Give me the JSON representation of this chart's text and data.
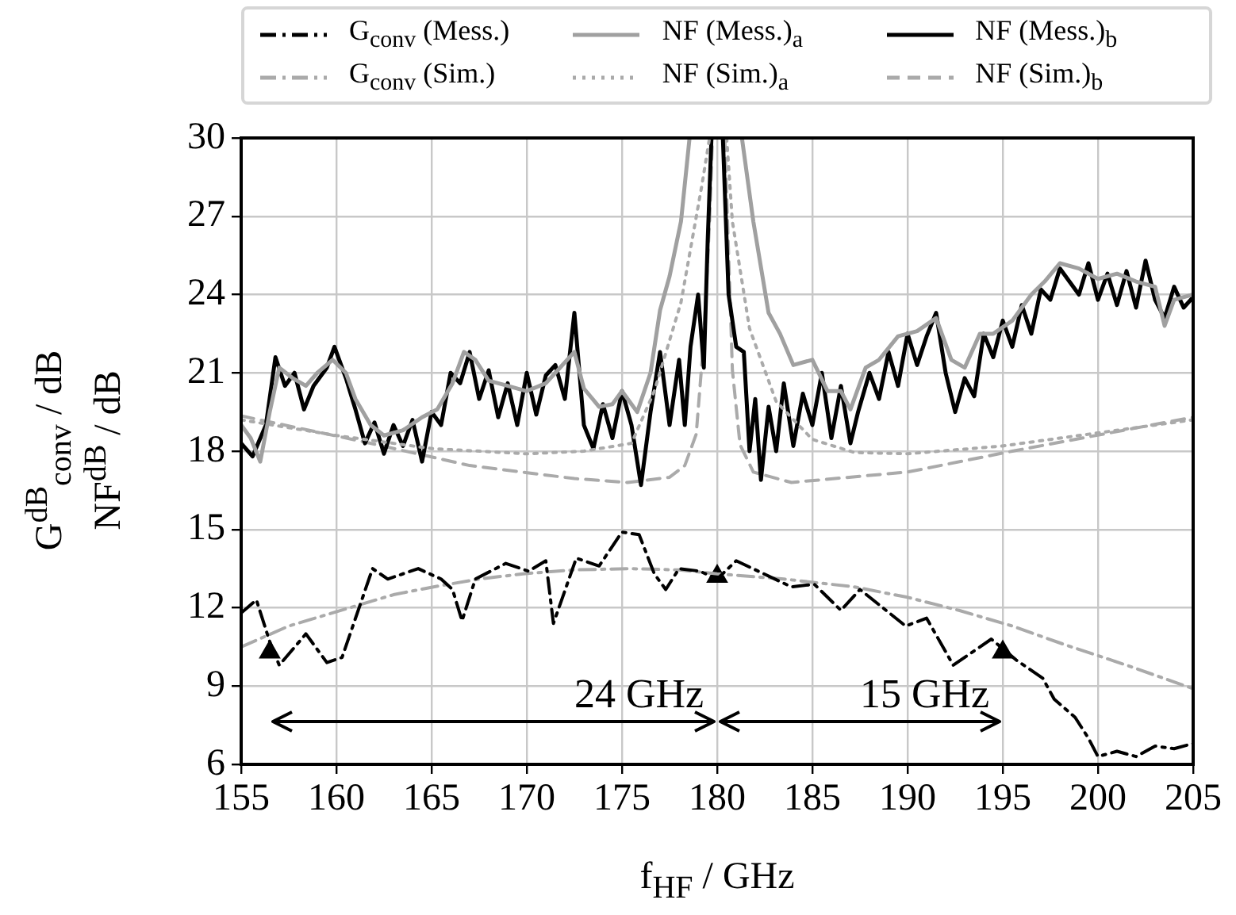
{
  "chart_data": {
    "type": "line",
    "xlabel": "f$_{HF}$ / GHz",
    "ylabel": "G$^{dB}$$_{conv}$ / dB\nNF$^{dB}$ / dB",
    "xlim": [
      155,
      205
    ],
    "xticks": [
      155,
      160,
      165,
      170,
      175,
      180,
      185,
      190,
      195,
      200,
      205
    ],
    "ylim": [
      6,
      30
    ],
    "yticks": [
      6,
      9,
      12,
      15,
      18,
      21,
      24,
      27,
      30
    ],
    "grid": true,
    "legend": "top",
    "annotations": [
      "24 GHz",
      "15 GHz"
    ],
    "series": [
      {
        "name": "G$_{conv}$ (Mess.)",
        "color": "#000000",
        "line_style": "dashdot",
        "x": [
          155,
          155.8,
          156.5,
          157,
          158.4,
          159.5,
          160.3,
          161.9,
          162.7,
          164.3,
          165.5,
          166.1,
          166.6,
          167.3,
          168.9,
          170.1,
          171,
          171.4,
          172.6,
          173.8,
          175,
          175.9,
          176.7,
          177.3,
          178,
          179.1,
          180,
          181,
          183.9,
          185.1,
          186.5,
          187.5,
          189.9,
          191,
          192.4,
          194.4,
          195.7,
          197.1,
          197.7,
          198.8,
          199.5,
          200,
          201,
          202,
          203,
          204,
          205
        ],
        "values": [
          11.8,
          12.3,
          10.7,
          9.8,
          11,
          9.9,
          10.1,
          13.5,
          13.1,
          13.5,
          13.1,
          12.7,
          11.5,
          13.1,
          13.7,
          13.4,
          13.8,
          11.4,
          13.9,
          13.6,
          14.9,
          14.8,
          13.3,
          12.7,
          13.5,
          13.4,
          13.1,
          13.8,
          12.8,
          12.9,
          11.9,
          12.7,
          11.3,
          11.6,
          9.8,
          10.8,
          10,
          9.3,
          8.5,
          7.8,
          7,
          6.3,
          6.5,
          6.3,
          6.7,
          6.6,
          6.8
        ]
      },
      {
        "name": "G$_{conv}$ (Sim.)",
        "color": "#aaaaaa",
        "line_style": "dashdot",
        "x": [
          155,
          157.5,
          160.7,
          163,
          165.1,
          167.5,
          169.8,
          172.5,
          175.3,
          178,
          180,
          183.5,
          187.2,
          190,
          192.7,
          195.5,
          198.2,
          201.5,
          205
        ],
        "values": [
          10.5,
          11.3,
          12,
          12.5,
          12.8,
          13.1,
          13.3,
          13.45,
          13.5,
          13.45,
          13.3,
          13.1,
          12.8,
          12.4,
          11.9,
          11.3,
          10.6,
          9.8,
          8.9
        ]
      },
      {
        "name": "NF (Mess.)$_{a}$",
        "color": "#a0a0a0",
        "line_style": "solid",
        "x": [
          155,
          155.5,
          156,
          156.5,
          157,
          157.7,
          158.4,
          159,
          159.8,
          160.5,
          161,
          161.8,
          162.5,
          163.5,
          164.5,
          165.3,
          166.1,
          166.7,
          167.3,
          168,
          169,
          170,
          171,
          171.5,
          172.5,
          173,
          173.8,
          174.5,
          175,
          175.8,
          176.5,
          177,
          177.5,
          178.1,
          178.55,
          180,
          181.3,
          181.9,
          182.7,
          183.3,
          184,
          185,
          185.8,
          186.5,
          187,
          187.8,
          188.5,
          189.5,
          190.5,
          191.5,
          192.3,
          193,
          193.8,
          194.5,
          195.5,
          196.5,
          197.2,
          198,
          199,
          200,
          201,
          202,
          203,
          203.5,
          204,
          205
        ],
        "values": [
          19,
          18.5,
          17.6,
          19.5,
          21.2,
          20.8,
          20.5,
          21,
          21.5,
          21,
          20,
          19,
          18.6,
          18.8,
          19.3,
          19.6,
          20.6,
          21.8,
          21.5,
          20.7,
          20.5,
          20.3,
          20.6,
          21,
          21.8,
          20.4,
          19.7,
          19.8,
          20.3,
          19.5,
          21,
          23.4,
          24.7,
          26.8,
          30,
          null,
          30,
          26.8,
          23.3,
          22.5,
          21.3,
          21.5,
          20.3,
          20.3,
          19.6,
          21.2,
          21.5,
          22.4,
          22.6,
          23.1,
          21.5,
          21.2,
          22.5,
          22.5,
          23,
          24,
          24.5,
          25.2,
          25,
          24.6,
          24.8,
          24.5,
          24.3,
          22.8,
          23.8,
          24
        ]
      },
      {
        "name": "NF (Sim.)$_{a}$",
        "color": "#aaaaaa",
        "line_style": "dotted",
        "x": [
          155,
          160,
          165,
          170,
          173,
          175.5,
          176.7,
          178.1,
          179.2,
          179.6,
          180,
          180.5,
          180.8,
          181.7,
          183.1,
          185,
          187.2,
          190,
          195,
          200,
          205
        ],
        "values": [
          19.2,
          18.6,
          18.1,
          17.9,
          18,
          18.3,
          20.3,
          23.7,
          28.2,
          30,
          null,
          30,
          26.8,
          22.7,
          19.9,
          18.45,
          17.95,
          17.9,
          18.2,
          18.7,
          19.2
        ]
      },
      {
        "name": "NF (Mess.)$_{b}$",
        "color": "#000000",
        "line_style": "solid",
        "x": [
          155,
          155.6,
          156.3,
          156.8,
          157.3,
          157.8,
          158.3,
          158.8,
          159.5,
          159.9,
          160.5,
          161,
          161.5,
          162,
          162.5,
          163,
          163.5,
          164,
          164.5,
          165,
          165.5,
          166,
          166.5,
          167,
          167.5,
          168,
          168.5,
          169,
          169.5,
          170,
          170.5,
          171,
          171.5,
          172,
          172.5,
          173,
          173.5,
          174,
          174.5,
          175,
          175.5,
          176,
          176.5,
          177,
          177.5,
          178,
          178.3,
          178.6,
          179,
          179.3,
          179.5,
          179.7,
          180,
          180.3,
          180.6,
          181,
          181.4,
          181.7,
          182,
          182.3,
          182.7,
          183.1,
          183.5,
          184,
          184.5,
          185,
          185.5,
          186,
          186.5,
          187,
          187.4,
          188,
          188.5,
          189,
          189.5,
          190,
          190.5,
          191,
          191.5,
          192,
          192.5,
          193,
          193.5,
          194,
          194.5,
          195,
          195.5,
          196,
          196.5,
          197,
          197.5,
          198,
          198.5,
          199,
          199.5,
          200,
          200.5,
          201,
          201.5,
          202,
          202.5,
          203,
          203.5,
          204,
          204.5,
          205
        ],
        "values": [
          18.3,
          17.8,
          19,
          21.6,
          20.5,
          21,
          19.6,
          20.5,
          21.2,
          22,
          20.8,
          19.6,
          18.3,
          19.1,
          17.9,
          19,
          18.2,
          19.2,
          17.6,
          19.5,
          19,
          21,
          20.6,
          21.8,
          20,
          21.1,
          19.3,
          20.6,
          19,
          21,
          19.4,
          20.9,
          21.3,
          20,
          23.3,
          19,
          18.1,
          19.8,
          18.5,
          20.3,
          19,
          16.7,
          19.5,
          21.8,
          19,
          21.5,
          19,
          22,
          24,
          21.2,
          26,
          30,
          null,
          30,
          24,
          22,
          21.8,
          18,
          20,
          16.9,
          19.7,
          18,
          20.6,
          18.2,
          20.2,
          19,
          21,
          18.5,
          20.5,
          18.3,
          19.5,
          21,
          20,
          21.8,
          20.5,
          22.5,
          21.3,
          22.4,
          23.3,
          21,
          19.5,
          20.8,
          20.1,
          22.5,
          21.6,
          23,
          22,
          23.6,
          22.5,
          24.2,
          23.8,
          25,
          24.5,
          24,
          25.2,
          23.8,
          24.8,
          23.6,
          24.9,
          23.5,
          25.3,
          23.8,
          23.1,
          24.3,
          23.5,
          23.9
        ]
      },
      {
        "name": "NF (Sim.)$_{b}$",
        "color": "#aaaaaa",
        "line_style": "dashed",
        "x": [
          155,
          161.5,
          167,
          172.5,
          175.3,
          177.5,
          178.3,
          178.9,
          179.3,
          179.6,
          179.75,
          180,
          180.4,
          180.8,
          181.2,
          181.9,
          183.9,
          190,
          195.5,
          205
        ],
        "values": [
          19.35,
          18.35,
          17.45,
          16.95,
          16.8,
          17,
          17.45,
          18.65,
          22.3,
          26.8,
          30,
          null,
          30,
          21.1,
          18.25,
          17.2,
          16.8,
          17.2,
          18,
          19.3
        ]
      },
      {
        "type": "scatter",
        "color": "#000000",
        "marker": "triangle",
        "x": [
          156.5,
          180,
          195
        ],
        "values": [
          10.3,
          13.2,
          10.3
        ]
      }
    ]
  }
}
